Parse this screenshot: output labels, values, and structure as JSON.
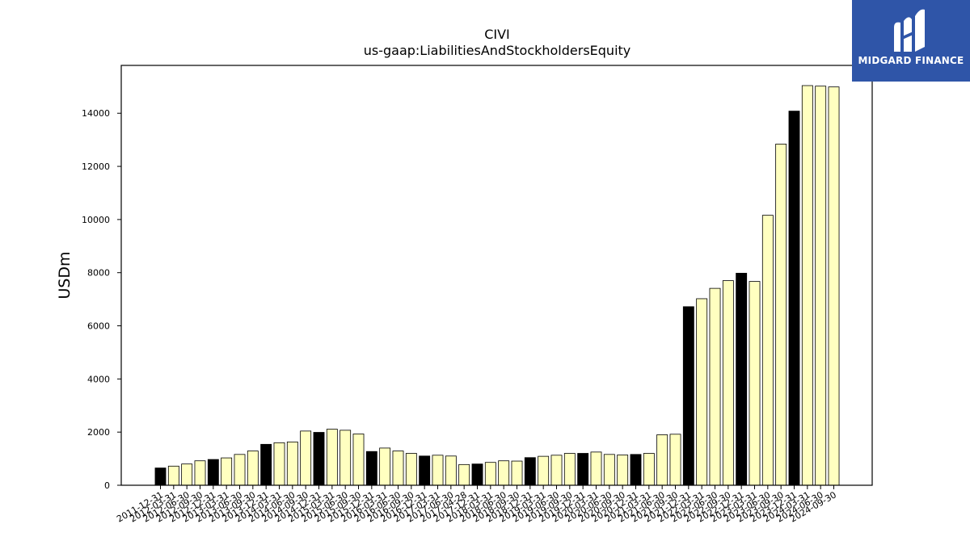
{
  "chart_data": {
    "type": "bar",
    "title": "CIVI",
    "subtitle": "us-gaap:LiabilitiesAndStockholdersEquity",
    "ylabel": "USDm",
    "xlabel": "",
    "ylim": [
      0,
      15800
    ],
    "yticks": [
      0,
      2000,
      4000,
      6000,
      8000,
      10000,
      12000,
      14000
    ],
    "colors": {
      "annual": "#000000",
      "quarterly": "#ffffc0",
      "edge": "#000000"
    },
    "categories": [
      "2011-12-31",
      "2012-03-31",
      "2012-06-30",
      "2012-09-30",
      "2012-12-31",
      "2013-03-31",
      "2013-06-30",
      "2013-09-30",
      "2013-12-31",
      "2014-03-31",
      "2014-06-30",
      "2014-09-30",
      "2014-12-31",
      "2015-03-31",
      "2015-06-30",
      "2015-09-30",
      "2015-12-31",
      "2016-03-31",
      "2016-06-30",
      "2016-09-30",
      "2016-12-31",
      "2017-03-31",
      "2017-06-30",
      "2017-04-28",
      "2017-12-31",
      "2018-03-31",
      "2018-06-30",
      "2018-09-30",
      "2018-12-31",
      "2019-03-31",
      "2019-06-30",
      "2019-09-30",
      "2019-12-31",
      "2020-03-31",
      "2020-06-30",
      "2020-09-30",
      "2020-12-31",
      "2021-03-31",
      "2021-06-30",
      "2021-09-30",
      "2021-12-31",
      "2022-03-31",
      "2022-06-30",
      "2022-09-30",
      "2022-12-31",
      "2023-03-31",
      "2023-06-30",
      "2023-09-30",
      "2023-12-31",
      "2024-03-31",
      "2024-06-30",
      "2024-09-30"
    ],
    "values": [
      650,
      720,
      800,
      920,
      970,
      1030,
      1160,
      1290,
      1540,
      1600,
      1630,
      2040,
      1990,
      2110,
      2070,
      1930,
      1270,
      1400,
      1290,
      1200,
      1100,
      1130,
      1100,
      780,
      800,
      860,
      920,
      910,
      1040,
      1090,
      1130,
      1200,
      1200,
      1250,
      1160,
      1140,
      1160,
      1200,
      1900,
      1920,
      6720,
      7020,
      7410,
      7700,
      7980,
      7670,
      10160,
      12840,
      14080,
      15040,
      15020,
      14990
    ],
    "annual_flags": [
      true,
      false,
      false,
      false,
      true,
      false,
      false,
      false,
      true,
      false,
      false,
      false,
      true,
      false,
      false,
      false,
      true,
      false,
      false,
      false,
      true,
      false,
      false,
      false,
      true,
      false,
      false,
      false,
      true,
      false,
      false,
      false,
      true,
      false,
      false,
      false,
      true,
      false,
      false,
      false,
      true,
      false,
      false,
      false,
      true,
      false,
      false,
      false,
      true,
      false,
      false,
      false
    ],
    "grid": false
  },
  "logo": {
    "text": "MIDGARD FINANCE"
  }
}
